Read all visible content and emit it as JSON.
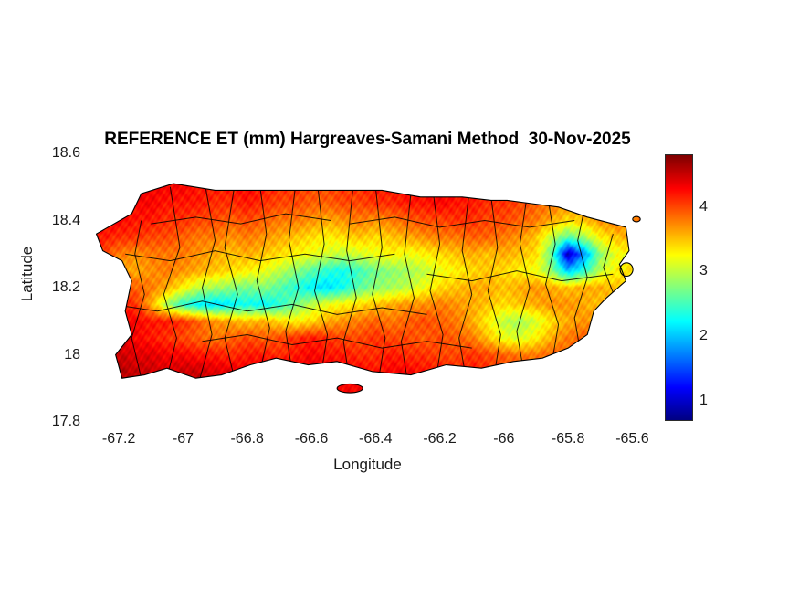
{
  "figure": {
    "title": "REFERENCE ET (mm) Hargreaves-Samani Method  30-Nov-2025",
    "xlabel": "Longitude",
    "ylabel": "Latitude"
  },
  "chart_data": {
    "type": "heatmap",
    "title": "REFERENCE ET (mm) Hargreaves-Samani Method  30-Nov-2025",
    "xlabel": "Longitude",
    "ylabel": "Latitude",
    "xlim": [
      -67.3,
      -65.55
    ],
    "ylim": [
      17.8,
      18.6
    ],
    "x_ticks": [
      -67.2,
      -67,
      -66.8,
      -66.6,
      -66.4,
      -66.2,
      -66,
      -65.8,
      -65.6
    ],
    "x_tick_labels": [
      "-67.2",
      "-67",
      "-66.8",
      "-66.6",
      "-66.4",
      "-66.2",
      "-66",
      "-65.8",
      "-65.6"
    ],
    "y_ticks": [
      17.8,
      18,
      18.2,
      18.4,
      18.6
    ],
    "y_tick_labels": [
      "17.8",
      "18",
      "18.2",
      "18.4",
      "18.6"
    ],
    "colormap": "jet",
    "clim": [
      0.7,
      4.8
    ],
    "colorbar_ticks": [
      1,
      2,
      3,
      4
    ],
    "colorbar_tick_labels": [
      "1",
      "2",
      "3",
      "4"
    ],
    "grid": {
      "lons": [
        -67.25,
        -67.2,
        -67.15,
        -67.1,
        -67.05,
        -67.0,
        -66.95,
        -66.9,
        -66.85,
        -66.8,
        -66.75,
        -66.7,
        -66.65,
        -66.6,
        -66.55,
        -66.5,
        -66.45,
        -66.4,
        -66.35,
        -66.3,
        -66.25,
        -66.2,
        -66.15,
        -66.1,
        -66.05,
        -66.0,
        -65.95,
        -65.9,
        -65.85,
        -65.8,
        -65.75,
        -65.7,
        -65.65,
        -65.6
      ],
      "lats": [
        17.95,
        18.0,
        18.05,
        18.1,
        18.15,
        18.2,
        18.25,
        18.3,
        18.35,
        18.4,
        18.45,
        18.5
      ],
      "values": [
        [
          4.6,
          4.6,
          4.5,
          4.5,
          4.4,
          4.5,
          4.5,
          4.4,
          4.4,
          4.3,
          4.4,
          4.4,
          4.3,
          4.4,
          4.4,
          4.3,
          4.3,
          4.2,
          4.3,
          4.3,
          4.2,
          4.2,
          4.1,
          4.2,
          4.1,
          4.0,
          4.0,
          3.9,
          3.9,
          3.8,
          3.8,
          3.7,
          3.7,
          3.6
        ],
        [
          4.5,
          4.5,
          4.4,
          4.4,
          4.3,
          4.3,
          4.2,
          4.2,
          4.1,
          4.2,
          4.2,
          4.1,
          4.2,
          4.3,
          4.2,
          4.2,
          4.1,
          4.1,
          4.2,
          4.1,
          4.1,
          4.0,
          4.0,
          4.1,
          4.0,
          3.9,
          3.8,
          3.8,
          3.9,
          3.9,
          3.8,
          3.8,
          3.7,
          3.7
        ],
        [
          4.4,
          4.4,
          4.3,
          4.2,
          4.1,
          4.0,
          3.9,
          3.8,
          3.9,
          4.0,
          3.9,
          4.0,
          4.1,
          4.2,
          4.1,
          4.0,
          4.0,
          4.1,
          4.0,
          4.0,
          3.9,
          4.0,
          3.9,
          3.8,
          3.5,
          3.2,
          3.1,
          3.3,
          3.6,
          3.8,
          3.9,
          3.8,
          3.8,
          3.7
        ],
        [
          4.3,
          4.3,
          4.3,
          4.2,
          4.2,
          4.1,
          3.9,
          3.7,
          3.6,
          3.5,
          3.6,
          3.4,
          3.3,
          3.4,
          3.6,
          3.7,
          3.8,
          3.9,
          3.8,
          3.9,
          4.0,
          3.9,
          3.8,
          3.6,
          3.3,
          3.0,
          2.9,
          3.1,
          3.4,
          3.6,
          3.7,
          3.7,
          3.6,
          3.6
        ],
        [
          4.3,
          4.2,
          4.1,
          3.6,
          2.9,
          2.4,
          2.2,
          2.1,
          2.2,
          2.3,
          2.2,
          2.4,
          2.7,
          3.0,
          3.2,
          3.3,
          3.4,
          3.5,
          3.6,
          3.7,
          3.7,
          3.8,
          3.7,
          3.6,
          3.5,
          3.4,
          3.5,
          3.6,
          3.7,
          3.7,
          3.6,
          3.5,
          3.5,
          3.4
        ],
        [
          4.1,
          4.0,
          3.9,
          3.8,
          3.6,
          3.3,
          3.0,
          2.9,
          2.8,
          2.7,
          2.8,
          2.6,
          2.4,
          2.2,
          2.1,
          2.3,
          2.6,
          2.8,
          2.9,
          3.0,
          3.2,
          3.4,
          3.5,
          3.6,
          3.6,
          3.5,
          3.6,
          3.7,
          3.6,
          3.5,
          3.6,
          3.6,
          3.5,
          3.5
        ],
        [
          3.9,
          3.7,
          3.6,
          3.7,
          3.8,
          3.7,
          3.6,
          3.5,
          3.4,
          3.3,
          3.2,
          3.0,
          2.8,
          2.6,
          2.4,
          2.3,
          2.5,
          2.7,
          2.8,
          2.9,
          3.0,
          3.2,
          3.3,
          3.4,
          3.5,
          3.4,
          3.3,
          3.2,
          2.8,
          2.0,
          2.4,
          3.0,
          3.3,
          3.4
        ],
        [
          4.0,
          3.8,
          3.7,
          3.8,
          3.8,
          3.8,
          3.7,
          3.6,
          3.5,
          3.6,
          3.5,
          3.4,
          3.3,
          3.2,
          3.1,
          3.0,
          3.1,
          3.2,
          3.3,
          3.2,
          3.3,
          3.4,
          3.5,
          3.6,
          3.5,
          3.6,
          3.5,
          3.4,
          2.6,
          0.9,
          1.8,
          2.8,
          3.2,
          3.3
        ],
        [
          4.2,
          4.1,
          4.1,
          4.0,
          4.0,
          3.9,
          3.8,
          3.8,
          3.7,
          3.8,
          3.7,
          3.6,
          3.5,
          3.4,
          3.3,
          3.4,
          3.5,
          3.4,
          3.5,
          3.6,
          3.7,
          3.8,
          3.8,
          3.9,
          3.9,
          3.8,
          3.7,
          3.5,
          3.0,
          2.6,
          2.9,
          3.3,
          3.5,
          3.6
        ],
        [
          4.3,
          4.3,
          4.2,
          4.2,
          4.1,
          4.1,
          4.0,
          4.0,
          3.9,
          4.0,
          3.9,
          3.8,
          3.8,
          3.7,
          3.6,
          3.7,
          3.8,
          3.7,
          3.8,
          3.9,
          4.0,
          4.0,
          4.1,
          4.1,
          4.0,
          4.0,
          3.9,
          3.8,
          3.6,
          3.4,
          3.5,
          3.7,
          3.8,
          3.8
        ],
        [
          4.4,
          4.4,
          4.3,
          4.3,
          4.2,
          4.2,
          4.2,
          4.1,
          4.1,
          4.2,
          4.1,
          4.0,
          4.0,
          3.9,
          3.9,
          4.0,
          4.0,
          4.1,
          4.1,
          4.2,
          4.2,
          4.3,
          4.2,
          4.2,
          4.1,
          4.1,
          4.0,
          3.9,
          3.8,
          3.7,
          3.8,
          3.9,
          4.0,
          4.0
        ],
        [
          4.5,
          4.4,
          4.4,
          4.3,
          4.3,
          4.3,
          4.2,
          4.2,
          4.2,
          4.3,
          4.2,
          4.1,
          4.1,
          4.0,
          4.0,
          4.1,
          4.1,
          4.2,
          4.2,
          4.3,
          4.3,
          4.3,
          4.3,
          4.2,
          4.2,
          4.1,
          4.1,
          4.0,
          3.9,
          3.8,
          3.9,
          4.0,
          4.0,
          4.0
        ]
      ]
    },
    "island_outline": [
      [
        -67.27,
        18.36
      ],
      [
        -67.16,
        18.42
      ],
      [
        -67.13,
        18.48
      ],
      [
        -67.03,
        18.51
      ],
      [
        -66.9,
        18.49
      ],
      [
        -66.77,
        18.49
      ],
      [
        -66.64,
        18.49
      ],
      [
        -66.5,
        18.49
      ],
      [
        -66.38,
        18.49
      ],
      [
        -66.26,
        18.47
      ],
      [
        -66.13,
        18.47
      ],
      [
        -66.04,
        18.46
      ],
      [
        -65.99,
        18.46
      ],
      [
        -65.91,
        18.45
      ],
      [
        -65.83,
        18.44
      ],
      [
        -65.74,
        18.41
      ],
      [
        -65.66,
        18.39
      ],
      [
        -65.62,
        18.38
      ],
      [
        -65.61,
        18.31
      ],
      [
        -65.64,
        18.27
      ],
      [
        -65.62,
        18.22
      ],
      [
        -65.68,
        18.17
      ],
      [
        -65.72,
        18.13
      ],
      [
        -65.74,
        18.06
      ],
      [
        -65.8,
        18.02
      ],
      [
        -65.88,
        17.99
      ],
      [
        -65.97,
        17.98
      ],
      [
        -66.07,
        17.96
      ],
      [
        -66.18,
        17.97
      ],
      [
        -66.29,
        17.94
      ],
      [
        -66.41,
        17.95
      ],
      [
        -66.52,
        17.98
      ],
      [
        -66.61,
        17.97
      ],
      [
        -66.71,
        17.99
      ],
      [
        -66.79,
        17.97
      ],
      [
        -66.88,
        17.94
      ],
      [
        -66.96,
        17.93
      ],
      [
        -67.05,
        17.96
      ],
      [
        -67.12,
        17.94
      ],
      [
        -67.19,
        17.93
      ],
      [
        -67.21,
        18.0
      ],
      [
        -67.16,
        18.06
      ],
      [
        -67.18,
        18.13
      ],
      [
        -67.16,
        18.22
      ],
      [
        -67.19,
        18.28
      ],
      [
        -67.25,
        18.31
      ]
    ],
    "islets": [
      {
        "cx": -66.48,
        "cy": 17.9,
        "rx": 0.04,
        "ry": 0.013
      },
      {
        "cx": -65.618,
        "cy": 18.254,
        "rx": 0.02,
        "ry": 0.02
      },
      {
        "cx": -65.587,
        "cy": 18.404,
        "rx": 0.012,
        "ry": 0.008
      }
    ],
    "boundaries": [
      [
        [
          -67.13,
          17.93
        ],
        [
          -67.16,
          18.05
        ],
        [
          -67.12,
          18.18
        ],
        [
          -67.15,
          18.3
        ],
        [
          -67.13,
          18.4
        ]
      ],
      [
        [
          -67.05,
          17.93
        ],
        [
          -67.02,
          18.05
        ],
        [
          -67.06,
          18.18
        ],
        [
          -67.01,
          18.32
        ],
        [
          -67.04,
          18.5
        ]
      ],
      [
        [
          -66.95,
          17.92
        ],
        [
          -66.91,
          18.06
        ],
        [
          -66.94,
          18.2
        ],
        [
          -66.9,
          18.34
        ],
        [
          -66.93,
          18.5
        ]
      ],
      [
        [
          -66.84,
          17.93
        ],
        [
          -66.87,
          18.05
        ],
        [
          -66.83,
          18.18
        ],
        [
          -66.87,
          18.32
        ],
        [
          -66.84,
          18.5
        ]
      ],
      [
        [
          -66.76,
          17.95
        ],
        [
          -66.73,
          18.08
        ],
        [
          -66.77,
          18.22
        ],
        [
          -66.74,
          18.36
        ],
        [
          -66.76,
          18.5
        ]
      ],
      [
        [
          -66.66,
          17.95
        ],
        [
          -66.68,
          18.07
        ],
        [
          -66.64,
          18.2
        ],
        [
          -66.67,
          18.34
        ],
        [
          -66.65,
          18.5
        ]
      ],
      [
        [
          -66.57,
          17.94
        ],
        [
          -66.55,
          18.06
        ],
        [
          -66.59,
          18.19
        ],
        [
          -66.56,
          18.33
        ],
        [
          -66.58,
          18.5
        ]
      ],
      [
        [
          -66.48,
          17.92
        ],
        [
          -66.5,
          18.04
        ],
        [
          -66.46,
          18.17
        ],
        [
          -66.49,
          18.31
        ],
        [
          -66.47,
          18.5
        ]
      ],
      [
        [
          -66.39,
          17.93
        ],
        [
          -66.37,
          18.05
        ],
        [
          -66.41,
          18.18
        ],
        [
          -66.38,
          18.32
        ],
        [
          -66.4,
          18.5
        ]
      ],
      [
        [
          -66.3,
          17.92
        ],
        [
          -66.32,
          18.04
        ],
        [
          -66.28,
          18.17
        ],
        [
          -66.31,
          18.3
        ],
        [
          -66.29,
          18.48
        ]
      ],
      [
        [
          -66.21,
          17.94
        ],
        [
          -66.19,
          18.06
        ],
        [
          -66.23,
          18.19
        ],
        [
          -66.2,
          18.33
        ],
        [
          -66.22,
          18.48
        ]
      ],
      [
        [
          -66.12,
          17.94
        ],
        [
          -66.14,
          18.05
        ],
        [
          -66.1,
          18.18
        ],
        [
          -66.13,
          18.31
        ],
        [
          -66.11,
          18.47
        ]
      ],
      [
        [
          -66.03,
          17.94
        ],
        [
          -66.01,
          18.06
        ],
        [
          -66.05,
          18.19
        ],
        [
          -66.02,
          18.32
        ],
        [
          -66.04,
          18.47
        ]
      ],
      [
        [
          -65.94,
          17.96
        ],
        [
          -65.96,
          18.07
        ],
        [
          -65.92,
          18.2
        ],
        [
          -65.95,
          18.33
        ],
        [
          -65.93,
          18.46
        ]
      ],
      [
        [
          -65.85,
          17.98
        ],
        [
          -65.83,
          18.09
        ],
        [
          -65.87,
          18.21
        ],
        [
          -65.84,
          18.33
        ],
        [
          -65.86,
          18.45
        ]
      ],
      [
        [
          -65.76,
          18.0
        ],
        [
          -65.78,
          18.11
        ],
        [
          -65.74,
          18.23
        ],
        [
          -65.77,
          18.34
        ],
        [
          -65.75,
          18.43
        ]
      ],
      [
        [
          -65.68,
          18.06
        ],
        [
          -65.65,
          18.16
        ],
        [
          -65.69,
          18.26
        ],
        [
          -65.66,
          18.36
        ]
      ],
      [
        [
          -67.22,
          18.15
        ],
        [
          -67.08,
          18.13
        ],
        [
          -66.94,
          18.16
        ],
        [
          -66.8,
          18.13
        ],
        [
          -66.66,
          18.15
        ],
        [
          -66.52,
          18.12
        ],
        [
          -66.38,
          18.14
        ],
        [
          -66.24,
          18.12
        ]
      ],
      [
        [
          -66.24,
          18.24
        ],
        [
          -66.1,
          18.22
        ],
        [
          -65.96,
          18.25
        ],
        [
          -65.82,
          18.22
        ],
        [
          -65.66,
          18.24
        ]
      ],
      [
        [
          -67.18,
          18.3
        ],
        [
          -67.04,
          18.28
        ],
        [
          -66.9,
          18.31
        ],
        [
          -66.76,
          18.28
        ],
        [
          -66.62,
          18.3
        ],
        [
          -66.48,
          18.28
        ],
        [
          -66.34,
          18.3
        ]
      ],
      [
        [
          -66.94,
          18.04
        ],
        [
          -66.8,
          18.06
        ],
        [
          -66.66,
          18.03
        ],
        [
          -66.52,
          18.05
        ],
        [
          -66.38,
          18.02
        ],
        [
          -66.24,
          18.04
        ],
        [
          -66.1,
          18.02
        ]
      ],
      [
        [
          -66.48,
          18.39
        ],
        [
          -66.34,
          18.41
        ],
        [
          -66.2,
          18.38
        ],
        [
          -66.06,
          18.4
        ],
        [
          -65.92,
          18.38
        ],
        [
          -65.78,
          18.4
        ]
      ],
      [
        [
          -67.1,
          18.39
        ],
        [
          -66.96,
          18.41
        ],
        [
          -66.82,
          18.39
        ],
        [
          -66.68,
          18.42
        ],
        [
          -66.54,
          18.4
        ]
      ]
    ]
  }
}
